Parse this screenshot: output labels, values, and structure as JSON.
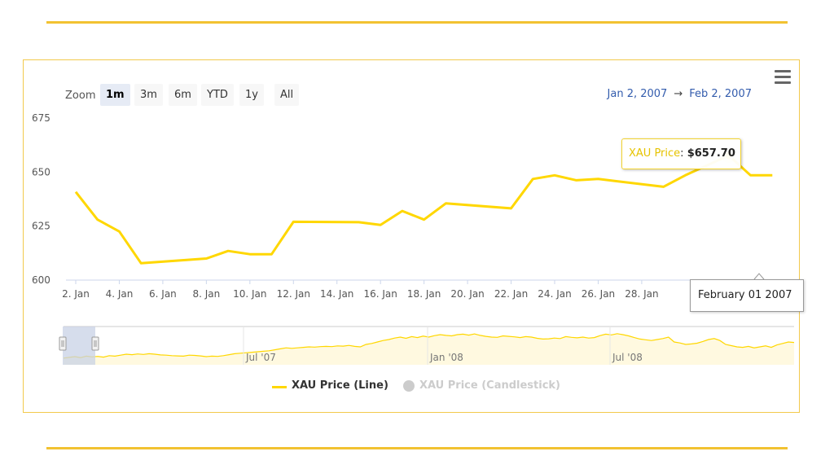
{
  "colors": {
    "accent": "#f2c231",
    "series": "#ffd700",
    "frame": "#f2c94c",
    "navigator_mask": "#c8d1e6"
  },
  "range_selector": {
    "zoom_label": "Zoom",
    "buttons": [
      "1m",
      "3m",
      "6m",
      "YTD",
      "1y",
      "All"
    ],
    "selected": "1m",
    "from": "Jan 2, 2007",
    "arrow": "→",
    "to": "Feb 2, 2007"
  },
  "menu_icon": "hamburger-menu-icon",
  "tooltip": {
    "label": "XAU Price",
    "colon": ": ",
    "value": "$657.70"
  },
  "crosshair_label": "February 01 2007",
  "legend": {
    "line": "XAU Price (Line)",
    "candlestick": "XAU Price (Candlestick)"
  },
  "chart_data": {
    "type": "line",
    "ylim": [
      600,
      675
    ],
    "yticks": [
      600,
      625,
      650,
      675
    ],
    "xlim": [
      0,
      33
    ],
    "xticks": [
      {
        "day": 0,
        "label": "2. Jan"
      },
      {
        "day": 2,
        "label": "4. Jan"
      },
      {
        "day": 4,
        "label": "6. Jan"
      },
      {
        "day": 6,
        "label": "8. Jan"
      },
      {
        "day": 8,
        "label": "10. Jan"
      },
      {
        "day": 10,
        "label": "12. Jan"
      },
      {
        "day": 12,
        "label": "14. Jan"
      },
      {
        "day": 14,
        "label": "16. Jan"
      },
      {
        "day": 16,
        "label": "18. Jan"
      },
      {
        "day": 18,
        "label": "20. Jan"
      },
      {
        "day": 20,
        "label": "22. Jan"
      },
      {
        "day": 22,
        "label": "24. Jan"
      },
      {
        "day": 24,
        "label": "26. Jan"
      },
      {
        "day": 26,
        "label": "28. Jan"
      }
    ],
    "series": [
      {
        "name": "XAU Price (Line)",
        "points": [
          [
            0,
            640.8
          ],
          [
            1,
            628
          ],
          [
            2,
            622.5
          ],
          [
            3,
            607.8
          ],
          [
            6,
            610
          ],
          [
            7,
            613.5
          ],
          [
            8,
            612
          ],
          [
            9,
            612
          ],
          [
            10,
            627
          ],
          [
            13,
            626.8
          ],
          [
            14,
            625.5
          ],
          [
            15,
            632
          ],
          [
            16,
            628
          ],
          [
            17,
            635.5
          ],
          [
            20,
            633.2
          ],
          [
            21,
            646.8
          ],
          [
            22,
            648.5
          ],
          [
            23,
            646.2
          ],
          [
            24,
            646.8
          ],
          [
            27,
            643.2
          ],
          [
            28,
            648.5
          ],
          [
            30,
            657.7
          ],
          [
            31,
            648.5
          ],
          [
            32,
            648.5
          ]
        ],
        "highlight": [
          30,
          657.7
        ]
      }
    ]
  },
  "navigator": {
    "labels": [
      "Jul '07",
      "Jan '08",
      "Jul '08"
    ],
    "values": [
      604,
      607,
      610,
      606,
      612,
      609,
      611,
      608,
      614,
      612,
      616,
      620,
      618,
      621,
      619,
      622,
      620,
      617,
      616,
      614,
      613,
      612,
      616,
      615,
      613,
      610,
      612,
      611,
      614,
      618,
      622,
      624,
      626,
      628,
      630,
      632,
      634,
      638,
      642,
      646,
      644,
      646,
      648,
      650,
      649,
      651,
      652,
      651,
      654,
      653,
      656,
      652,
      650,
      660,
      664,
      670,
      676,
      680,
      686,
      690,
      685,
      692,
      688,
      694,
      690,
      696,
      700,
      697,
      695,
      700,
      702,
      698,
      703,
      697,
      693,
      690,
      689,
      695,
      693,
      691,
      688,
      692,
      690,
      685,
      682,
      683,
      686,
      684,
      692,
      689,
      687,
      690,
      686,
      688,
      696,
      702,
      699,
      704,
      700,
      695,
      688,
      682,
      679,
      676,
      680,
      684,
      690,
      670,
      666,
      660,
      662,
      665,
      672,
      680,
      684,
      676,
      660,
      655,
      650,
      648,
      652,
      646,
      650,
      654,
      648,
      658,
      664,
      670,
      668
    ]
  }
}
